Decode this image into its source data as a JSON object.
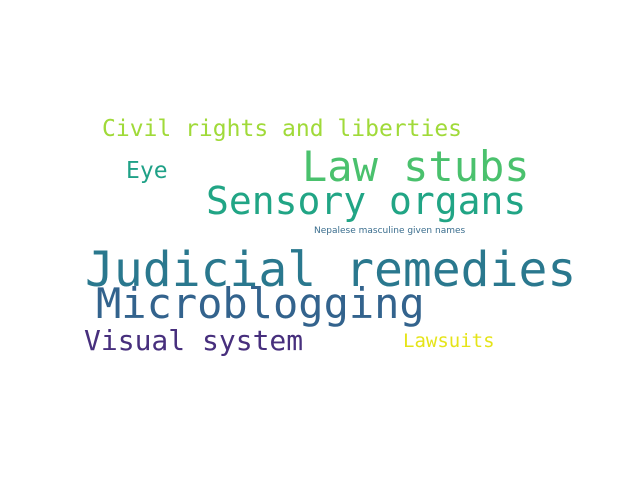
{
  "words": [
    {
      "id": "w-civil",
      "text": "Civil rights and liberties",
      "color": "#a0da39"
    },
    {
      "id": "w-law",
      "text": "Law stubs",
      "color": "#4ac16d"
    },
    {
      "id": "w-eye",
      "text": "Eye",
      "color": "#1fa187"
    },
    {
      "id": "w-sensory",
      "text": "Sensory organs",
      "color": "#21a585"
    },
    {
      "id": "w-nepalese",
      "text": "Nepalese masculine given names",
      "color": "#3b6e8e"
    },
    {
      "id": "w-judicial",
      "text": "Judicial remedies",
      "color": "#2a788e"
    },
    {
      "id": "w-micro",
      "text": "Microblogging",
      "color": "#33638d"
    },
    {
      "id": "w-visual",
      "text": "Visual system",
      "color": "#472f7d"
    },
    {
      "id": "w-lawsuits",
      "text": "Lawsuits",
      "color": "#e5e419"
    }
  ]
}
